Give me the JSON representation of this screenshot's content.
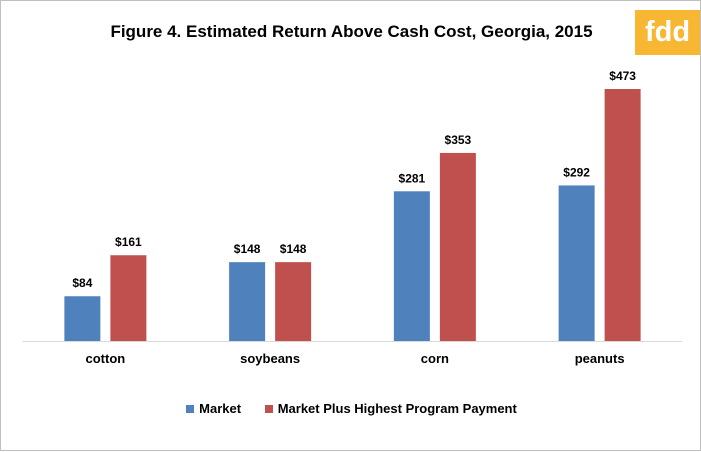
{
  "chart_data": {
    "type": "bar",
    "title": "Figure 4. Estimated Return Above Cash Cost, Georgia, 2015",
    "logo_text": "fdd",
    "categories": [
      "cotton",
      "soybeans",
      "corn",
      "peanuts"
    ],
    "series": [
      {
        "name": "Market",
        "color": "#4f81bd",
        "values": [
          84,
          148,
          281,
          292
        ],
        "labels": [
          "$84",
          "$148",
          "$281",
          "$292"
        ]
      },
      {
        "name": "Market Plus Highest Program Payment",
        "color": "#c0504d",
        "values": [
          161,
          148,
          353,
          473
        ],
        "labels": [
          "$161",
          "$148",
          "$353",
          "$473"
        ]
      }
    ],
    "ylim": [
      0,
      500
    ],
    "grid": false,
    "legend_position": "bottom"
  },
  "colors": {
    "logo_bg": "#f7b733",
    "axis": "#d9d9d9"
  }
}
